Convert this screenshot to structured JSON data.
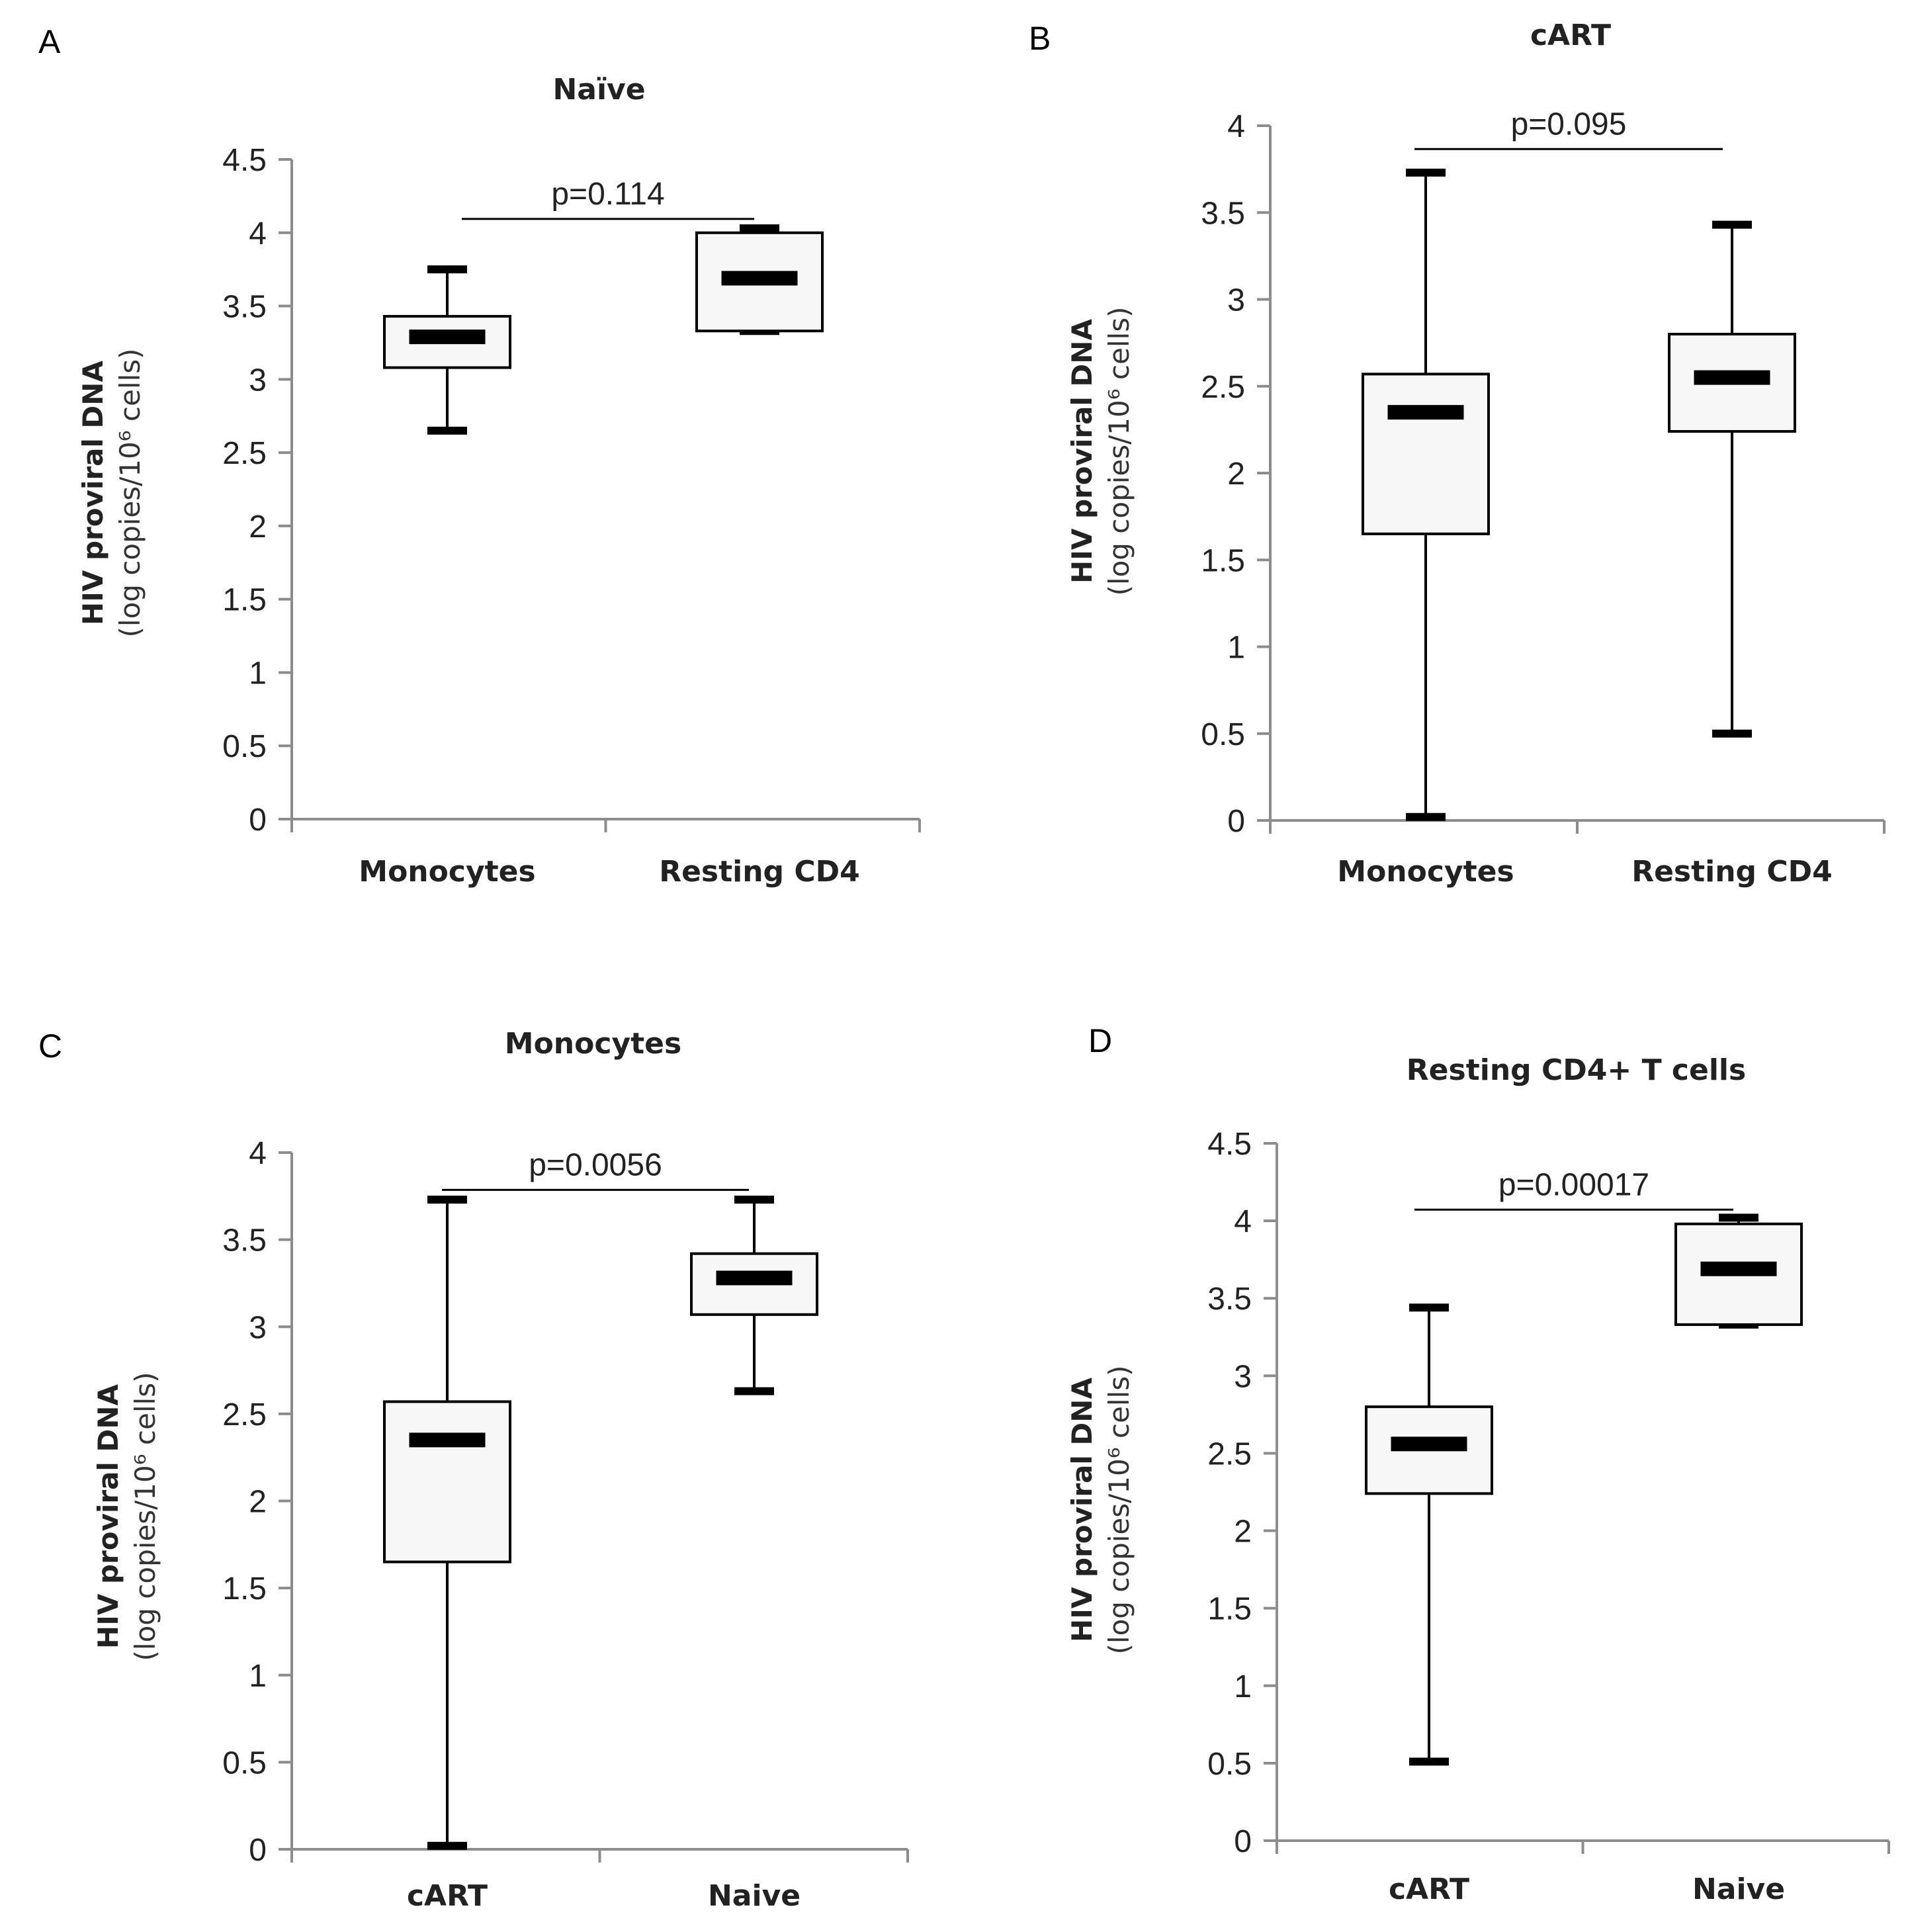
{
  "chart_data": [
    {
      "panel": "A",
      "type": "box",
      "title": "Naïve",
      "ylabel_main": "HIV proviral DNA",
      "ylabel_unit": "(log copies/10⁶ cells)",
      "yticks": [
        "0",
        "0.5",
        "1",
        "1.5",
        "2",
        "2.5",
        "3",
        "3.5",
        "4",
        "4.5"
      ],
      "ylim": [
        0,
        4.5
      ],
      "categories": [
        "Monocytes",
        "Resting CD4"
      ],
      "boxes": [
        {
          "min": 2.65,
          "q1": 3.08,
          "median": 3.29,
          "q3": 3.43,
          "max": 3.75
        },
        {
          "min": 3.33,
          "q1": 3.33,
          "median": 3.69,
          "q3": 4.0,
          "max": 4.03
        }
      ],
      "annotation": {
        "text": "p=0.114",
        "y": 4.23
      }
    },
    {
      "panel": "B",
      "type": "box",
      "title": "cART",
      "ylabel_main": "HIV proviral DNA",
      "ylabel_unit": "(log copies/10⁶ cells)",
      "yticks": [
        "0",
        "0.5",
        "1",
        "1.5",
        "2",
        "2.5",
        "3",
        "3.5",
        "4"
      ],
      "ylim": [
        0,
        4
      ],
      "categories": [
        "Monocytes",
        "Resting CD4"
      ],
      "boxes": [
        {
          "min": 0.02,
          "q1": 1.65,
          "median": 2.35,
          "q3": 2.57,
          "max": 3.73
        },
        {
          "min": 0.5,
          "q1": 2.24,
          "median": 2.55,
          "q3": 2.8,
          "max": 3.43
        }
      ],
      "annotation": {
        "text": "p=0.095",
        "y": 3.98
      }
    },
    {
      "panel": "C",
      "type": "box",
      "title": "Monocytes",
      "ylabel_main": "HIV proviral DNA",
      "ylabel_unit": "(log copies/10⁶ cells)",
      "yticks": [
        "0",
        "0.5",
        "1",
        "1.5",
        "2",
        "2.5",
        "3",
        "3.5",
        "4"
      ],
      "ylim": [
        0,
        4
      ],
      "categories": [
        "cART",
        "Naive"
      ],
      "boxes": [
        {
          "min": 0.02,
          "q1": 1.65,
          "median": 2.35,
          "q3": 2.57,
          "max": 3.73
        },
        {
          "min": 2.63,
          "q1": 3.07,
          "median": 3.28,
          "q3": 3.42,
          "max": 3.73
        }
      ],
      "annotation": {
        "text": "p=0.0056",
        "y": 3.9
      }
    },
    {
      "panel": "D",
      "type": "box",
      "title": "Resting CD4+ T cells",
      "ylabel_main": "HIV proviral DNA",
      "ylabel_unit": "(log copies/10⁶ cells)",
      "yticks": [
        "0",
        "0.5",
        "1",
        "1.5",
        "2",
        "2.5",
        "3",
        "3.5",
        "4",
        "4.5"
      ],
      "ylim": [
        0,
        4.5
      ],
      "categories": [
        "cART",
        "Naive"
      ],
      "boxes": [
        {
          "min": 0.51,
          "q1": 2.24,
          "median": 2.56,
          "q3": 2.8,
          "max": 3.44
        },
        {
          "min": 3.33,
          "q1": 3.33,
          "median": 3.69,
          "q3": 3.98,
          "max": 4.02
        }
      ],
      "annotation": {
        "text": "p=0.00017",
        "y": 4.2
      }
    }
  ]
}
